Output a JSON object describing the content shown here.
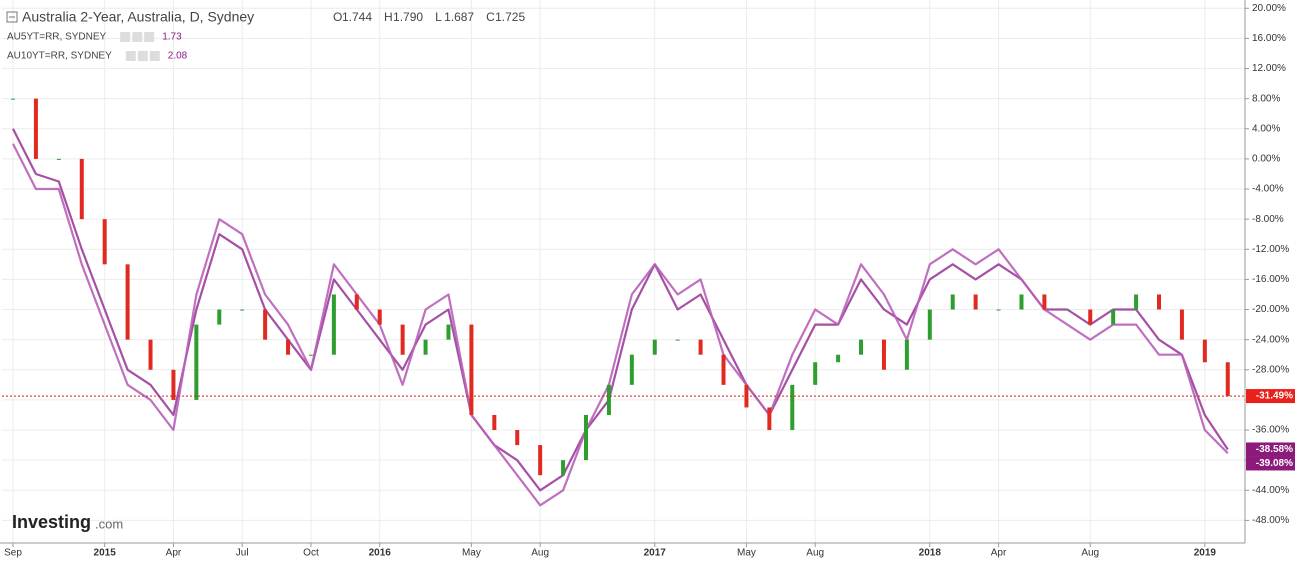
{
  "header": {
    "title": "Australia 2-Year, Australia, D, Sydney",
    "ohlc": [
      {
        "key": "O",
        "value": "1.744"
      },
      {
        "key": "H",
        "value": "1.790"
      },
      {
        "key": "L",
        "value": "1.687"
      },
      {
        "key": "C",
        "value": "1.725"
      }
    ],
    "legend": [
      {
        "name": "AU5YT=RR, SYDNEY",
        "value": "1.73"
      },
      {
        "name": "AU10YT=RR, SYDNEY",
        "value": "2.08"
      }
    ],
    "logo": {
      "brand": "Investing",
      "suffix": ".com"
    }
  },
  "chart_data": {
    "type": "line",
    "categories": [
      "Sep",
      null,
      null,
      null,
      "2015",
      null,
      null,
      "Apr",
      null,
      null,
      "Jul",
      null,
      null,
      "Oct",
      null,
      null,
      "2016",
      null,
      null,
      null,
      "May",
      null,
      null,
      "Aug",
      null,
      null,
      null,
      null,
      "2017",
      null,
      null,
      null,
      "May",
      null,
      null,
      "Aug",
      null,
      null,
      null,
      null,
      "2018",
      null,
      null,
      "Apr",
      null,
      null,
      null,
      "Aug",
      null,
      null,
      null,
      null,
      "2019",
      null
    ],
    "series": [
      {
        "name": "Australia 2-Year",
        "kind": "candle",
        "up_color": "#2e9e2e",
        "down_color": "#e02a1f",
        "tag_color": "#e8211a",
        "values": [
          8,
          0,
          0,
          -8,
          -14,
          -24,
          -28,
          -32,
          -22,
          -20,
          -20,
          -24,
          -26,
          -26,
          -18,
          -20,
          -22,
          -26,
          -24,
          -22,
          -34,
          -36,
          -38,
          -42,
          -40,
          -34,
          -30,
          -26,
          -24,
          -24,
          -26,
          -30,
          -33,
          -36,
          -30,
          -27,
          -26,
          -24,
          -28,
          -24,
          -20,
          -18,
          -20,
          -20,
          -18,
          -20,
          -20,
          -22,
          -20,
          -18,
          -20,
          -24,
          -27,
          -31.49
        ],
        "last_value_label": "-31.49%"
      },
      {
        "name": "AU5YT=RR, SYDNEY",
        "color": "#9b3d9b",
        "tag_color": "#8b1a7b",
        "values": [
          4,
          -2,
          -3,
          -12,
          -20,
          -28,
          -30,
          -34,
          -20,
          -10,
          -12,
          -20,
          -24,
          -28,
          -16,
          -20,
          -24,
          -28,
          -22,
          -20,
          -34,
          -38,
          -40,
          -44,
          -42,
          -36,
          -32,
          -20,
          -14,
          -20,
          -18,
          -24,
          -30,
          -34,
          -28,
          -22,
          -22,
          -16,
          -20,
          -22,
          -16,
          -14,
          -16,
          -14,
          -16,
          -20,
          -20,
          -22,
          -20,
          -20,
          -24,
          -26,
          -34,
          -38.58
        ],
        "last_value_label": "-38.58%"
      },
      {
        "name": "AU10YT=RR, SYDNEY",
        "color": "#b860b8",
        "tag_color": "#8b1a7b",
        "values": [
          2,
          -4,
          -4,
          -14,
          -22,
          -30,
          -32,
          -36,
          -18,
          -8,
          -10,
          -18,
          -22,
          -28,
          -14,
          -18,
          -22,
          -30,
          -20,
          -18,
          -34,
          -38,
          -42,
          -46,
          -44,
          -36,
          -30,
          -18,
          -14,
          -18,
          -16,
          -26,
          -30,
          -34,
          -26,
          -20,
          -22,
          -14,
          -18,
          -24,
          -14,
          -12,
          -14,
          -12,
          -16,
          -20,
          -22,
          -24,
          -22,
          -22,
          -26,
          -26,
          -36,
          -39.08
        ],
        "last_value_label": "-39.08%"
      }
    ],
    "ylim": [
      -51,
      21.1
    ],
    "yticks": [
      {
        "value": 20,
        "label": "20.00%"
      },
      {
        "value": 16,
        "label": "16.00%"
      },
      {
        "value": 12,
        "label": "12.00%"
      },
      {
        "value": 8,
        "label": "8.00%"
      },
      {
        "value": 4,
        "label": "4.00%"
      },
      {
        "value": 0,
        "label": "0.00%"
      },
      {
        "value": -4,
        "label": "-4.00%"
      },
      {
        "value": -8,
        "label": "-8.00%"
      },
      {
        "value": -12,
        "label": "-12.00%"
      },
      {
        "value": -16,
        "label": "-16.00%"
      },
      {
        "value": -20,
        "label": "-20.00%"
      },
      {
        "value": -24,
        "label": "-24.00%"
      },
      {
        "value": -28,
        "label": "-28.00%"
      },
      {
        "value": -32,
        "label": "-32.00%"
      },
      {
        "value": -36,
        "label": "-36.00%"
      },
      {
        "value": -40,
        "label": "-40.00%"
      },
      {
        "value": -44,
        "label": "-44.00%"
      },
      {
        "value": -48,
        "label": "-48.00%"
      }
    ],
    "grid": true,
    "price_line_color": "#d9211a"
  }
}
